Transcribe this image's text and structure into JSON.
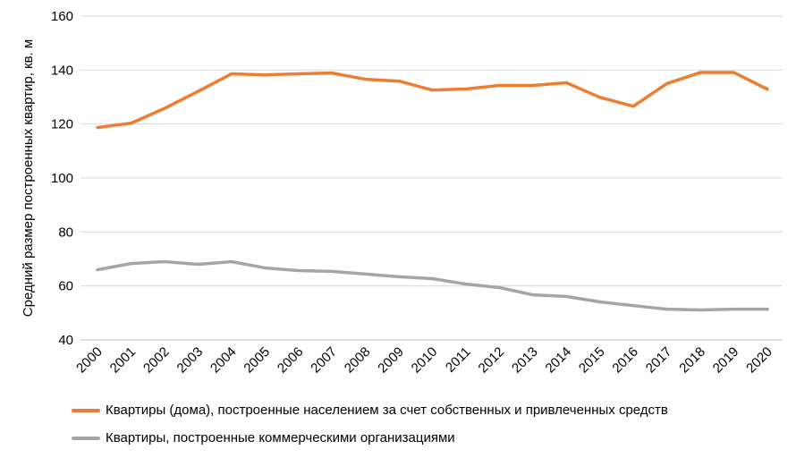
{
  "chart_data": {
    "type": "line",
    "title": "",
    "xlabel": "",
    "ylabel": "Средний размер построенных квартир, кв. м",
    "ylim": [
      40,
      160
    ],
    "yticks": [
      40,
      60,
      80,
      100,
      120,
      140,
      160
    ],
    "grid": true,
    "legend_position": "bottom-left",
    "x": [
      "2000",
      "2001",
      "2002",
      "2003",
      "2004",
      "2005",
      "2006",
      "2007",
      "2008",
      "2009",
      "2010",
      "2011",
      "2012",
      "2013",
      "2014",
      "2015",
      "2016",
      "2017",
      "2018",
      "2019",
      "2020"
    ],
    "series": [
      {
        "name": "Квартиры (дома), построенные населением за счет собственных и привлеченных средств",
        "color": "#ED7D31",
        "values": [
          118.7,
          120.3,
          125.8,
          132.1,
          138.6,
          138.2,
          138.6,
          138.9,
          136.6,
          135.9,
          132.6,
          133.0,
          134.3,
          134.3,
          135.3,
          129.9,
          126.6,
          135.0,
          139.1,
          139.1,
          132.9
        ]
      },
      {
        "name": "Квартиры, построенные коммерческими организациями",
        "color": "#A5A5A5",
        "values": [
          66.0,
          68.3,
          69.0,
          68.0,
          69.0,
          66.7,
          65.7,
          65.4,
          64.4,
          63.4,
          62.7,
          60.7,
          59.4,
          56.7,
          56.1,
          54.1,
          52.7,
          51.4,
          51.1,
          51.4,
          51.4
        ]
      }
    ]
  }
}
